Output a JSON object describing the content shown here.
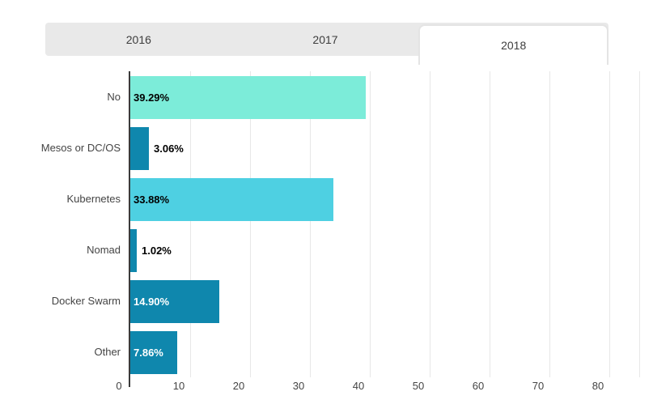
{
  "tabs": [
    {
      "label": "2016",
      "selected": false
    },
    {
      "label": "2017",
      "selected": false
    },
    {
      "label": "2018",
      "selected": true
    }
  ],
  "chart_data": {
    "type": "bar",
    "orientation": "horizontal",
    "title": "",
    "xlabel": "",
    "ylabel": "",
    "categories": [
      "No",
      "Mesos or DC/OS",
      "Kubernetes",
      "Nomad",
      "Docker Swarm",
      "Other"
    ],
    "values": [
      39.29,
      3.06,
      33.88,
      1.02,
      14.9,
      7.86
    ],
    "value_labels": [
      "39.29%",
      "3.06%",
      "33.88%",
      "1.02%",
      "14.90%",
      "7.86%"
    ],
    "bar_colors": [
      "#7cecd9",
      "#0f87ad",
      "#4ed0e2",
      "#0f87ad",
      "#0f87ad",
      "#0f87ad"
    ],
    "value_label_colors": [
      "#000000",
      "#000000",
      "#000000",
      "#000000",
      "#ffffff",
      "#ffffff"
    ],
    "value_label_placements": [
      "inside",
      "outside",
      "inside",
      "outside",
      "inside",
      "inside"
    ],
    "x_ticks": [
      0,
      10,
      20,
      30,
      40,
      50,
      60,
      70,
      80
    ],
    "xlim": [
      0,
      85
    ],
    "grid": true,
    "legend": "none",
    "axis_color": "#3b3b3b",
    "gridline_color": "#e7e7e7",
    "tick_label_color": "#444444",
    "category_label_color": "#444444"
  }
}
